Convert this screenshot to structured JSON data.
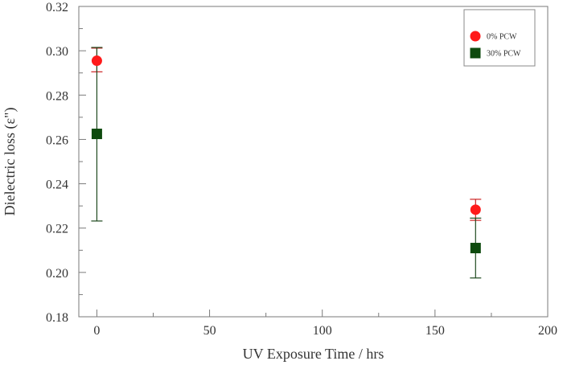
{
  "chart_data": {
    "type": "scatter",
    "title": "",
    "xlabel": "UV Exposure Time / hrs",
    "ylabel": "Dielectric loss (ε\")",
    "xlim": [
      -8,
      200
    ],
    "ylim": [
      0.18,
      0.32
    ],
    "xticks": [
      0,
      50,
      100,
      150,
      200
    ],
    "xtick_labels": [
      "0",
      "50",
      "100",
      "150",
      "200"
    ],
    "xminor": [
      25,
      75,
      125,
      175
    ],
    "yticks": [
      0.18,
      0.2,
      0.22,
      0.24,
      0.26,
      0.28,
      0.3,
      0.32
    ],
    "ytick_labels": [
      "0.18",
      "0.20",
      "0.22",
      "0.24",
      "0.26",
      "0.28",
      "0.30",
      "0.32"
    ],
    "grid": false,
    "legend_position": "top-right",
    "series": [
      {
        "name": "0% PCW",
        "marker": "circle",
        "color": "#ff1a1a",
        "errorbar_color": "#cc2222",
        "x": [
          0,
          168
        ],
        "y": [
          0.2955,
          0.2283
        ],
        "yerr_low": [
          0.2905,
          0.2235
        ],
        "yerr_high": [
          0.3012,
          0.233
        ]
      },
      {
        "name": "30% PCW",
        "marker": "square",
        "color": "#0e4a0e",
        "errorbar_color": "#1f4a1f",
        "x": [
          0,
          168
        ],
        "y": [
          0.2625,
          0.211
        ],
        "yerr_low": [
          0.2232,
          0.1975
        ],
        "yerr_high": [
          0.3015,
          0.2245
        ]
      }
    ]
  }
}
